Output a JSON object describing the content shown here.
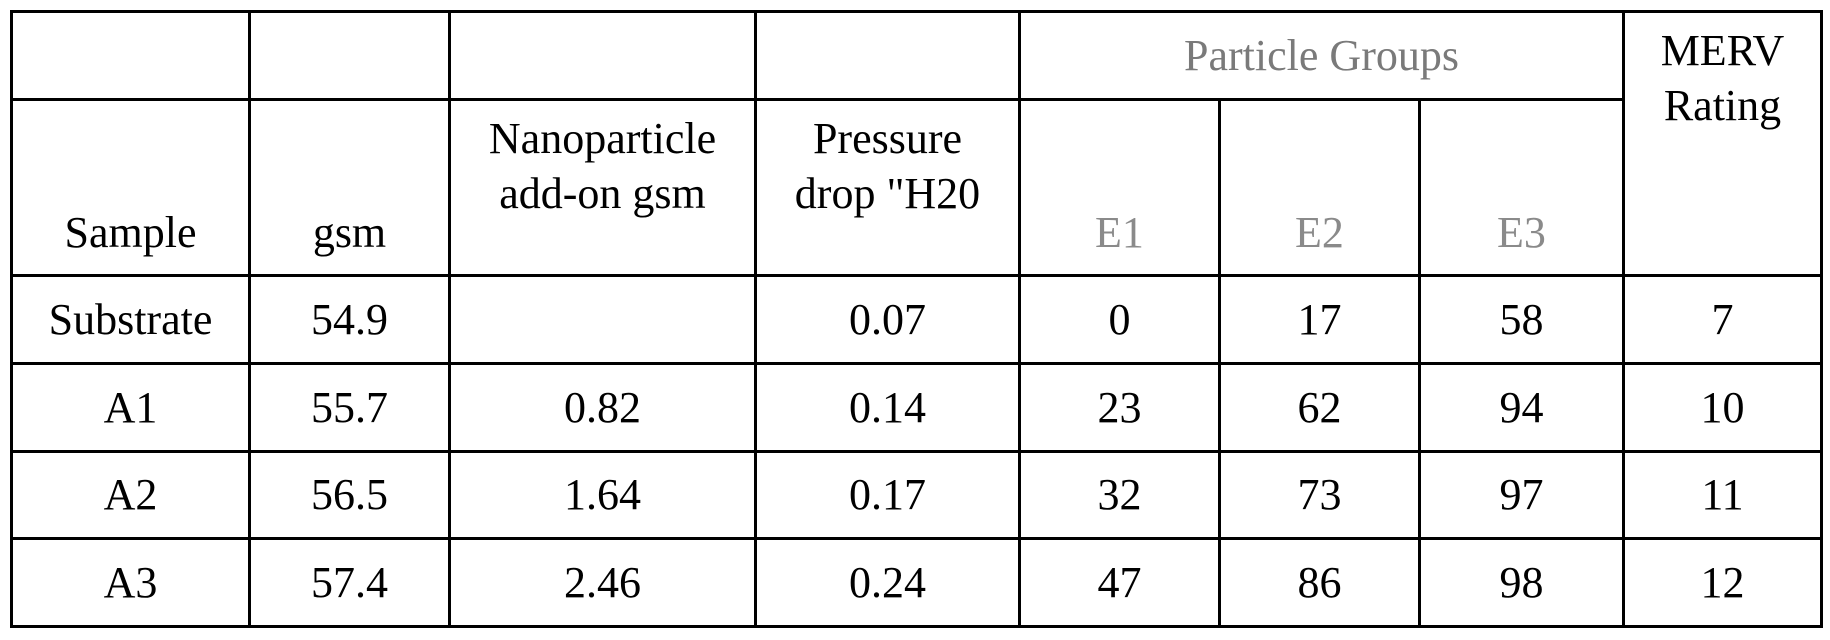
{
  "table": {
    "header": {
      "particle_groups": "Particle Groups",
      "sample": "Sample",
      "gsm": "gsm",
      "nano_line1": "Nanoparticle",
      "nano_line2": "add-on gsm",
      "pressure_line1": "Pressure",
      "pressure_line2": "drop \"H20",
      "e1": "E1",
      "e2": "E2",
      "e3": "E3",
      "merv_line1": "MERV",
      "merv_line2": "Rating"
    },
    "rows": [
      {
        "sample": "Substrate",
        "gsm": "54.9",
        "nano": "",
        "pressure": "0.07",
        "e1": "0",
        "e2": "17",
        "e3": "58",
        "merv": "7"
      },
      {
        "sample": "A1",
        "gsm": "55.7",
        "nano": "0.82",
        "pressure": "0.14",
        "e1": "23",
        "e2": "62",
        "e3": "94",
        "merv": "10"
      },
      {
        "sample": "A2",
        "gsm": "56.5",
        "nano": "1.64",
        "pressure": "0.17",
        "e1": "32",
        "e2": "73",
        "e3": "97",
        "merv": "11"
      },
      {
        "sample": "A3",
        "gsm": "57.4",
        "nano": "2.46",
        "pressure": "0.24",
        "e1": "47",
        "e2": "86",
        "e3": "98",
        "merv": "12"
      }
    ]
  }
}
